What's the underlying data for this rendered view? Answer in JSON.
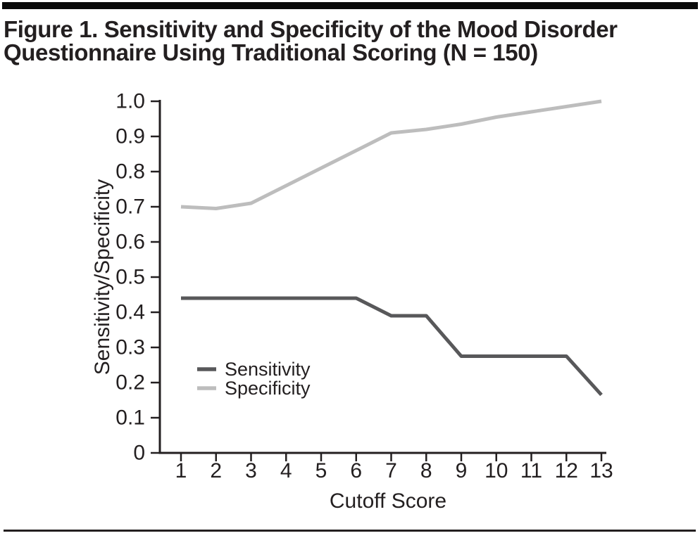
{
  "figure": {
    "title_line1": "Figure 1. Sensitivity and Specificity of the Mood Disorder",
    "title_line2": "Questionnaire Using Traditional Scoring (N = 150)"
  },
  "colors": {
    "text": "#231f20",
    "axis": "#231f20",
    "top_rule": "#0a0a0a",
    "bottom_rule": "#231f20",
    "sensitivity_line": "#58585a",
    "specificity_line": "#bdbdbd"
  },
  "chart_data": {
    "type": "line",
    "title": "",
    "xlabel": "Cutoff Score",
    "ylabel": "Sensitivity/Specificity",
    "x": [
      1,
      2,
      3,
      4,
      5,
      6,
      7,
      8,
      9,
      10,
      11,
      12,
      13
    ],
    "xtick_labels": [
      "1",
      "2",
      "3",
      "4",
      "5",
      "6",
      "7",
      "8",
      "9",
      "10",
      "11",
      "12",
      "13"
    ],
    "ytick_labels": [
      "0",
      "0.1",
      "0.2",
      "0.3",
      "0.4",
      "0.5",
      "0.6",
      "0.7",
      "0.8",
      "0.9",
      "1.0"
    ],
    "xlim": [
      1,
      13
    ],
    "ylim": [
      0,
      1.0
    ],
    "grid": false,
    "legend_position": "inside lower-left",
    "series": [
      {
        "name": "Sensitivity",
        "color": "#58585a",
        "values": [
          0.44,
          0.44,
          0.44,
          0.44,
          0.44,
          0.44,
          0.39,
          0.39,
          0.275,
          0.275,
          0.275,
          0.275,
          0.165
        ]
      },
      {
        "name": "Specificity",
        "color": "#bdbdbd",
        "values": [
          0.7,
          0.695,
          0.71,
          0.76,
          0.81,
          0.86,
          0.91,
          0.92,
          0.935,
          0.955,
          0.97,
          0.985,
          1.0
        ]
      }
    ]
  }
}
